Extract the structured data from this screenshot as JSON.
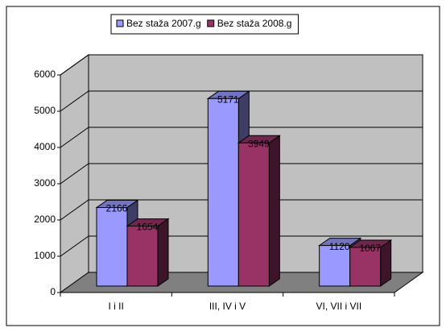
{
  "chart_data": {
    "type": "bar3d",
    "categories": [
      "I i II",
      "III, IV i V",
      "VI, VII i VII"
    ],
    "series": [
      {
        "name": "Bez staža 2007.g",
        "color": "#9999ff",
        "values": [
          2166,
          5171,
          1120
        ]
      },
      {
        "name": "Bez staža 2008.g",
        "color": "#993366",
        "values": [
          1654,
          3949,
          1067
        ]
      }
    ],
    "ylim": [
      0,
      6000
    ],
    "yticks": [
      0,
      1000,
      2000,
      3000,
      4000,
      5000,
      6000
    ],
    "grid": true,
    "legend": "top"
  }
}
